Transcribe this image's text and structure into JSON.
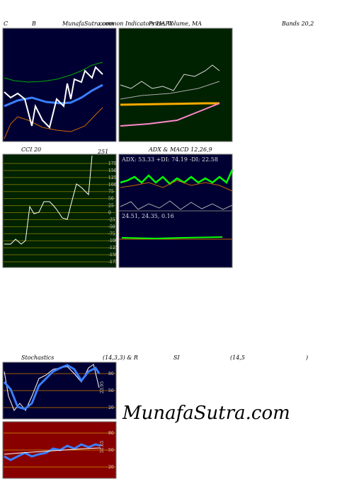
{
  "header": {
    "left": "C",
    "site": "MunafaSutra.com",
    "subtitle": "common Indicators HAPY"
  },
  "panels": {
    "bbands": {
      "title": "B",
      "title2": "Price, Volume, MA",
      "title3": "Bands 20,2"
    },
    "cci": {
      "title": "CCI 20",
      "last": "251",
      "ticks": [
        175,
        150,
        125,
        100,
        75,
        50,
        25,
        0,
        -25,
        -50,
        -75,
        -100,
        -125,
        -150,
        -175
      ]
    },
    "adx": {
      "title": "ADX  & MACD 12,26,9",
      "readout": "ADX: 53.33 +DI: 74.19 -DI: 22.58",
      "macd": "24.51, 24.35, 0.16"
    },
    "stoch": {
      "title": "Stochastics",
      "params": "(14,3,3) & R",
      "title2": "SI",
      "params2": "(14,5",
      "close": ")",
      "ticks": [
        80,
        50,
        20
      ],
      "last": "23.95"
    },
    "rsi": {
      "ticks": [
        80,
        50,
        20
      ],
      "last": "51.65"
    }
  },
  "watermark": "MunafaSutra.com"
}
